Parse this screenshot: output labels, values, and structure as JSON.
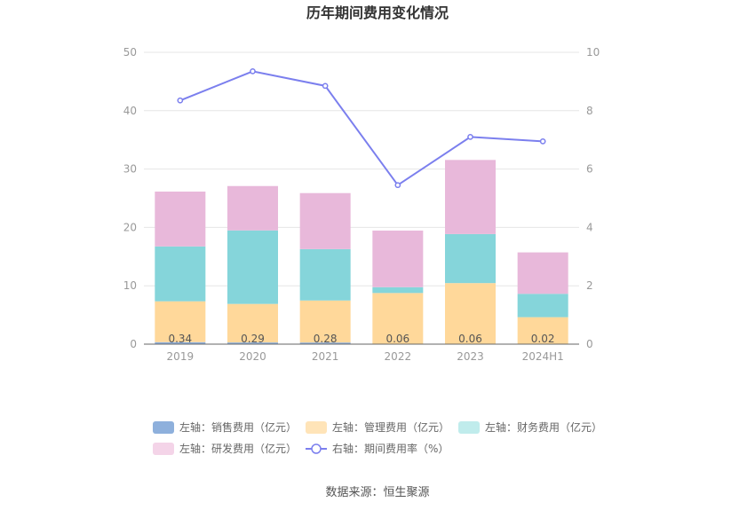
{
  "chart_data": {
    "type": "bar",
    "title": "历年期间费用变化情况",
    "categories": [
      "2019",
      "2020",
      "2021",
      "2022",
      "2023",
      "2024H1"
    ],
    "stacked": true,
    "left_axis": {
      "ylim": [
        0,
        50
      ],
      "ticks": [
        "0",
        "10",
        "20",
        "30",
        "40",
        "50"
      ]
    },
    "right_axis": {
      "ylim": [
        0,
        10
      ],
      "ticks": [
        "0",
        "2",
        "4",
        "6",
        "8",
        "10"
      ]
    },
    "grid": true,
    "series": [
      {
        "name": "左轴：销售费用（亿元）",
        "axis": "left",
        "type": "bar",
        "color": "#8eb0dc",
        "values": [
          0.34,
          0.29,
          0.28,
          0.06,
          0.06,
          0.02
        ],
        "data_labels": [
          "0.34",
          "0.29",
          "0.28",
          "0.06",
          "0.06",
          "0.02"
        ]
      },
      {
        "name": "左轴：管理费用（亿元）",
        "axis": "left",
        "type": "bar",
        "color": "#ffd89a",
        "values": [
          7.0,
          6.6,
          7.2,
          8.7,
          10.4,
          4.6
        ]
      },
      {
        "name": "左轴：财务费用（亿元）",
        "axis": "left",
        "type": "bar",
        "color": "#85d5da",
        "values": [
          9.4,
          12.6,
          8.8,
          1.0,
          8.4,
          4.0
        ]
      },
      {
        "name": "左轴：研发费用（亿元）",
        "axis": "left",
        "type": "bar",
        "color": "#e8b8da",
        "values": [
          9.4,
          7.6,
          9.6,
          9.7,
          12.7,
          7.1
        ]
      },
      {
        "name": "右轴：期间费用率（%）",
        "axis": "right",
        "type": "line",
        "color": "#7b7fee",
        "values": [
          8.35,
          9.35,
          8.85,
          5.45,
          7.1,
          6.95
        ]
      }
    ],
    "legend_position": "bottom"
  },
  "legend_colors": {
    "sales": "#8eb0dc",
    "mgmt": "#ffe4b8",
    "fin": "#c0ecec",
    "rd": "#f4d4e8",
    "rate": "#7b7fee"
  },
  "source": "数据来源：恒生聚源"
}
